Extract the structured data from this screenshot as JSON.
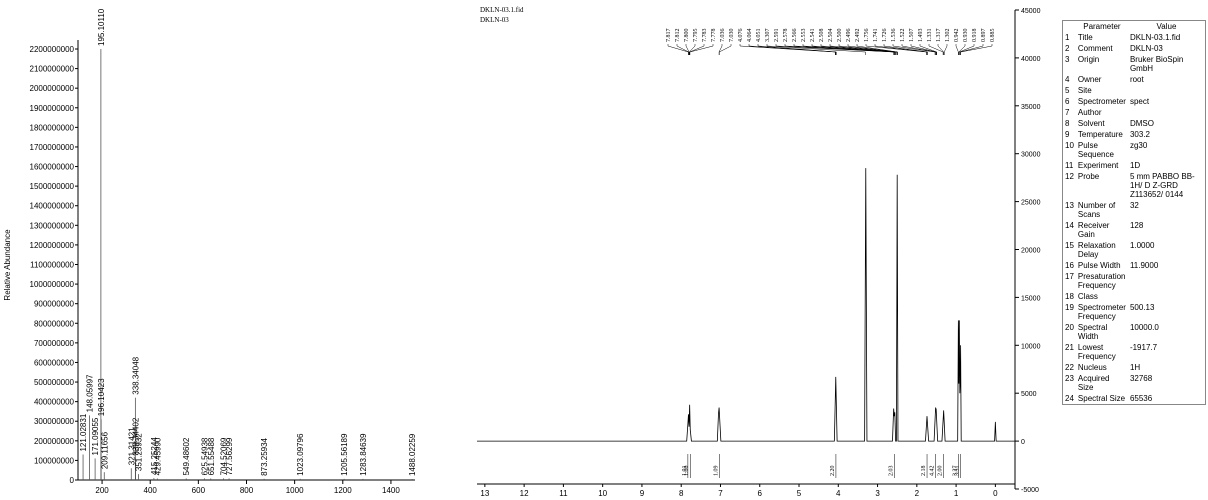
{
  "chart_data": [
    {
      "type": "bar",
      "ylabel": "Relative Abundance",
      "color": "#555555",
      "x": [
        121.02831,
        148.05997,
        171.09055,
        195.1011,
        196.10423,
        209.11656,
        321.31421,
        338.34048,
        339.34402,
        351.25932,
        415.25244,
        429.4599,
        549.48602,
        625.54938,
        651.55488,
        704.52069,
        727.56299,
        873.25934,
        1023.09796,
        1205.56189,
        1283.84639,
        1488.02259
      ],
      "x_labels": [
        "121.02831",
        "148.05997",
        "171.09055",
        "195.10110",
        "196.10423",
        "209.11656",
        "321.31421",
        "338.34048",
        "339.34402",
        "351.25932",
        "415.25244",
        "429.45990",
        "549.48602",
        "625.54938",
        "651.55488",
        "704.52069",
        "727.56299",
        "873.25934",
        "1023.09796",
        "1205.56189",
        "1283.84639",
        "1488.02259"
      ],
      "values": [
        130000000,
        330000000,
        110000000,
        2200000000,
        310000000,
        40000000,
        60000000,
        420000000,
        110000000,
        30000000,
        10000000,
        8000000,
        8000000,
        8000000,
        8000000,
        8000000,
        8000000,
        6000000,
        6000000,
        6000000,
        6000000,
        5000000
      ],
      "xlim": [
        100,
        1500
      ],
      "xticks": [
        200,
        400,
        600,
        800,
        1000,
        1200,
        1400
      ],
      "ylim": [
        0,
        2200000000
      ],
      "yticks": [
        0,
        100000000,
        200000000,
        300000000,
        400000000,
        500000000,
        600000000,
        700000000,
        800000000,
        900000000,
        1000000000,
        1100000000,
        1200000000,
        1300000000,
        1400000000,
        1500000000,
        1600000000,
        1700000000,
        1800000000,
        1900000000,
        2000000000,
        2100000000,
        2200000000
      ]
    },
    {
      "type": "line",
      "title": "DKLN-03.1.fid",
      "subtitle": "DKLN-03",
      "color": "#000000",
      "x": [
        13.2,
        7.86,
        7.83,
        7.815,
        7.8,
        7.785,
        7.77,
        7.74,
        7.08,
        7.05,
        7.035,
        6.99,
        4.1,
        4.064,
        4.03,
        3.33,
        3.3,
        3.27,
        2.62,
        2.59,
        2.575,
        2.56,
        2.54,
        2.52,
        2.5,
        2.48,
        1.78,
        1.741,
        1.7,
        1.56,
        1.522,
        1.507,
        1.47,
        1.36,
        1.317,
        1.28,
        0.96,
        0.942,
        0.93,
        0.918,
        0.905,
        0.897,
        0.885,
        0.87,
        0.02,
        0.0,
        -0.02,
        -0.5
      ],
      "values": [
        0,
        0,
        1800,
        2800,
        1500,
        3800,
        1200,
        0,
        0,
        2900,
        3500,
        0,
        0,
        6700,
        0,
        0,
        28500,
        0,
        0,
        3400,
        2600,
        3000,
        0,
        0,
        27800,
        0,
        0,
        2600,
        0,
        0,
        3500,
        3300,
        0,
        0,
        3200,
        0,
        0,
        12600,
        6000,
        12600,
        5000,
        6000,
        10000,
        0,
        0,
        2000,
        0,
        0
      ],
      "xlim": [
        13.2,
        -0.5
      ],
      "xticks": [
        13,
        12,
        11,
        10,
        9,
        8,
        7,
        6,
        5,
        4,
        3,
        2,
        1,
        0
      ],
      "ylim": [
        -5000,
        45000
      ],
      "yticks": [
        -5000,
        0,
        5000,
        10000,
        15000,
        20000,
        25000,
        30000,
        35000,
        40000,
        45000
      ],
      "peak_labels": [
        {
          "value": 7.817,
          "label": "7.817"
        },
        {
          "value": 7.812,
          "label": "7.812"
        },
        {
          "value": 7.8,
          "label": "7.800"
        },
        {
          "value": 7.795,
          "label": "7.795"
        },
        {
          "value": 7.783,
          "label": "7.783"
        },
        {
          "value": 7.778,
          "label": "7.778"
        },
        {
          "value": 7.036,
          "label": "7.036"
        },
        {
          "value": 7.03,
          "label": "7.030"
        },
        {
          "value": 4.076,
          "label": "4.076"
        },
        {
          "value": 4.064,
          "label": "4.064"
        },
        {
          "value": 4.051,
          "label": "4.051"
        },
        {
          "value": 3.307,
          "label": "3.307"
        },
        {
          "value": 2.591,
          "label": "2.591"
        },
        {
          "value": 2.578,
          "label": "2.578"
        },
        {
          "value": 2.566,
          "label": "2.566"
        },
        {
          "value": 2.553,
          "label": "2.553"
        },
        {
          "value": 2.541,
          "label": "2.541"
        },
        {
          "value": 2.508,
          "label": "2.508"
        },
        {
          "value": 2.504,
          "label": "2.504"
        },
        {
          "value": 2.5,
          "label": "2.500"
        },
        {
          "value": 2.496,
          "label": "2.496"
        },
        {
          "value": 2.492,
          "label": "2.492"
        },
        {
          "value": 1.756,
          "label": "1.756"
        },
        {
          "value": 1.741,
          "label": "1.741"
        },
        {
          "value": 1.726,
          "label": "1.726"
        },
        {
          "value": 1.536,
          "label": "1.536"
        },
        {
          "value": 1.522,
          "label": "1.522"
        },
        {
          "value": 1.507,
          "label": "1.507"
        },
        {
          "value": 1.493,
          "label": "1.493"
        },
        {
          "value": 1.331,
          "label": "1.331"
        },
        {
          "value": 1.317,
          "label": "1.317"
        },
        {
          "value": 1.302,
          "label": "1.302"
        },
        {
          "value": 0.942,
          "label": "0.942"
        },
        {
          "value": 0.93,
          "label": "0.930"
        },
        {
          "value": 0.918,
          "label": "0.918"
        },
        {
          "value": 0.897,
          "label": "0.897"
        },
        {
          "value": 0.885,
          "label": "0.885"
        }
      ],
      "integrals": [
        {
          "x": 7.83,
          "label": "1.01"
        },
        {
          "x": 7.77,
          "label": "1.00"
        },
        {
          "x": 7.03,
          "label": "1.09"
        },
        {
          "x": 4.06,
          "label": "2.20"
        },
        {
          "x": 2.57,
          "label": "2.03"
        },
        {
          "x": 1.74,
          "label": "2.18"
        },
        {
          "x": 1.52,
          "label": "4.42"
        },
        {
          "x": 1.32,
          "label": "2.00"
        },
        {
          "x": 0.94,
          "label": "3.27"
        },
        {
          "x": 0.89,
          "label": "3.31"
        }
      ]
    }
  ],
  "table": {
    "header": [
      "Parameter",
      "Value"
    ],
    "rows": [
      [
        "1",
        "Title",
        "DKLN-03.1.fid"
      ],
      [
        "2",
        "Comment",
        "DKLN-03"
      ],
      [
        "3",
        "Origin",
        "Bruker BioSpin GmbH"
      ],
      [
        "4",
        "Owner",
        "root"
      ],
      [
        "5",
        "Site"
      ],
      [
        "6",
        "Spectrometer",
        "spect"
      ],
      [
        "7",
        "Author"
      ],
      [
        "8",
        "Solvent",
        "DMSO"
      ],
      [
        "9",
        "Temperature",
        "303.2"
      ],
      [
        "10",
        "Pulse Sequence",
        "zg30"
      ],
      [
        "11",
        "Experiment",
        "1D"
      ],
      [
        "12",
        "Probe",
        "5 mm PABBO BB-1H/ D Z-GRD Z113652/ 0144"
      ],
      [
        "13",
        "Number of Scans",
        "32"
      ],
      [
        "14",
        "Receiver Gain",
        "128"
      ],
      [
        "15",
        "Relaxation Delay",
        "1.0000"
      ],
      [
        "16",
        "Pulse Width",
        "11.9000"
      ],
      [
        "17",
        "Presaturation Frequency"
      ],
      [
        "18",
        "Class"
      ],
      [
        "19",
        "Spectrometer Frequency",
        "500.13"
      ],
      [
        "20",
        "Spectral Width",
        "10000.0"
      ],
      [
        "21",
        "Lowest Frequency",
        "-1917.7"
      ],
      [
        "22",
        "Nucleus",
        "1H"
      ],
      [
        "23",
        "Acquired Size",
        "32768"
      ],
      [
        "24",
        "Spectral Size",
        "65536"
      ]
    ]
  }
}
